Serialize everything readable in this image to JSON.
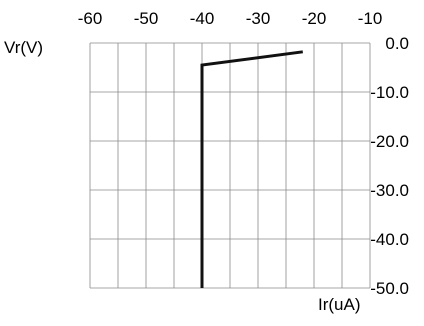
{
  "chart_data": {
    "type": "line",
    "title": "",
    "xlabel": "Ir(uA)",
    "ylabel": "Vr(V)",
    "x_ticks": [
      -60,
      -50,
      -40,
      -30,
      -20,
      -10
    ],
    "y_ticks": [
      0,
      -10,
      -20,
      -30,
      -40,
      -50
    ],
    "x_tick_labels": [
      "-60",
      "-50",
      "-40",
      "-30",
      "-20",
      "-10"
    ],
    "y_tick_labels": [
      "0.0",
      "-10.0",
      "-20.0",
      "-30.0",
      "-40.0",
      "-50.0"
    ],
    "xlim": [
      -60,
      -10
    ],
    "ylim": [
      -50,
      0
    ],
    "x_axis_position": "top",
    "y_axis_position": "right",
    "grid": true,
    "series": [
      {
        "color": "#111111",
        "x": [
          -40,
          -40,
          -22
        ],
        "y": [
          -50,
          -4.5,
          -1.8
        ]
      }
    ]
  }
}
